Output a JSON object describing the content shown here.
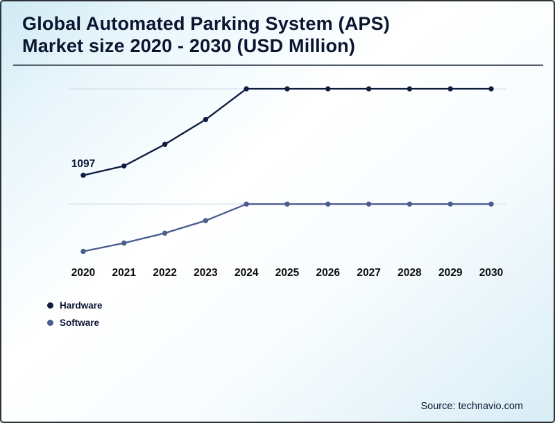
{
  "page": {
    "title_line1": "Global Automated Parking System (APS)",
    "title_line2": "Market size 2020 - 2030 (USD Million)",
    "source": "Source: technavio.com"
  },
  "legend": [
    {
      "label": "Hardware",
      "color": "#101d40"
    },
    {
      "label": "Software",
      "color": "#4a5d8f"
    }
  ],
  "chart_data": {
    "type": "line",
    "title": "Global Automated Parking System (APS) Market size 2020 - 2030 (USD Million)",
    "categories": [
      "2020",
      "2021",
      "2022",
      "2023",
      "2024",
      "2025",
      "2026",
      "2027",
      "2028",
      "2029",
      "2030"
    ],
    "series": [
      {
        "name": "Hardware",
        "color": "#101d40",
        "values": [
          1097,
          1210,
          1470,
          1770,
          2140,
          2140,
          2140,
          2140,
          2140,
          2140,
          2140
        ]
      },
      {
        "name": "Software",
        "color": "#4a5d8f",
        "values": [
          180,
          280,
          400,
          550,
          750,
          750,
          750,
          750,
          750,
          750,
          750
        ]
      }
    ],
    "xlabel": "",
    "ylabel": "",
    "ylim": [
      0,
      2300
    ],
    "grid": "horizontal-faint",
    "legend_position": "bottom-left",
    "annotations": [
      {
        "text": "1097",
        "series": 0,
        "point": 0
      }
    ]
  }
}
